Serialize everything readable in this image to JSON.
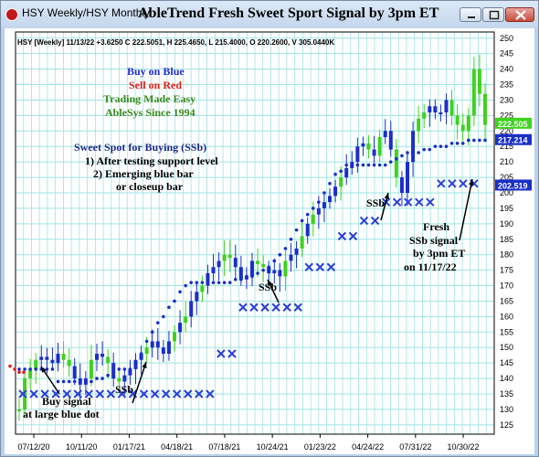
{
  "window": {
    "tab_label": "HSY Weekly/HSY Monthly",
    "chart_title": "AbleTrend Fresh Sweet Sport Signal by 3pm ET"
  },
  "info_line": "HSY [Weekly] 11/13/22 +3.6250 C 222.5051, H 225.4650, L 215.4000, O 220.2600, V 305.0440K",
  "legend": {
    "buy": "Buy on Blue",
    "sell": "Sell on Red",
    "easy": "Trading Made Easy",
    "since": "AbleSys Since 1994"
  },
  "sweet_spot": {
    "heading": "Sweet Spot for Buying (SSb)",
    "line1": "1) After testing support level",
    "line2": "2) Emerging blue bar",
    "line3": "or closeup bar"
  },
  "annotations": {
    "buy_signal_1": "Buy signal",
    "buy_signal_2": "at large blue dot",
    "ssb": "SSb",
    "fresh_1": "Fresh",
    "fresh_2": "SSb signal",
    "fresh_3": "by 3pm ET",
    "fresh_4": "on 11/17/22"
  },
  "chart_data": {
    "type": "candlestick",
    "x_tick_labels": [
      "07/12/20",
      "10/11/20",
      "01/17/21",
      "04/18/21",
      "07/18/21",
      "10/24/21",
      "01/23/22",
      "04/24/22",
      "07/31/22",
      "10/30/22"
    ],
    "y_ticks": [
      125,
      130,
      135,
      140,
      145,
      150,
      155,
      160,
      165,
      170,
      175,
      180,
      185,
      190,
      195,
      200,
      205,
      210,
      215,
      220,
      225,
      230,
      235,
      240,
      245,
      250
    ],
    "ylim": [
      122,
      252
    ],
    "price_labels": [
      {
        "value": 222.505,
        "label": "222.505",
        "color": "#3fd21f"
      },
      {
        "value": 217.214,
        "label": "217.214",
        "color": "#1a2ec8"
      },
      {
        "value": 202.519,
        "label": "202.519",
        "color": "#1a2ec8"
      }
    ],
    "colors": {
      "blue_bar": "#1a2ec8",
      "green_bar": "#3fd21f",
      "red": "#e0201a",
      "grid": "#9fe3e3"
    },
    "closes": [
      130,
      140,
      143,
      146,
      147,
      146,
      145,
      148,
      146,
      144,
      140,
      138,
      140,
      146,
      148,
      147,
      145,
      140,
      139,
      141,
      143,
      146,
      148,
      150,
      152,
      150,
      148,
      152,
      155,
      158,
      160,
      165,
      168,
      170,
      174,
      176,
      178,
      180,
      179,
      176,
      172,
      173,
      178,
      177,
      176,
      174,
      175,
      173,
      178,
      180,
      182,
      186,
      190,
      193,
      195,
      197,
      199,
      202,
      205,
      208,
      210,
      215,
      216,
      214,
      212,
      218,
      220,
      214,
      205,
      200,
      210,
      220,
      224,
      226,
      228,
      226,
      226,
      230,
      225,
      222,
      220,
      225,
      240,
      232,
      222
    ],
    "support_dots": [
      143,
      143,
      143,
      143,
      143,
      143,
      143,
      139,
      139,
      139,
      139,
      139,
      139,
      139,
      140,
      140,
      141,
      142,
      143,
      143,
      143,
      144,
      148,
      152,
      155,
      158,
      160,
      163,
      165,
      168,
      170,
      171,
      171,
      171,
      171,
      171,
      171,
      171,
      171,
      172,
      172,
      173,
      173,
      174,
      175,
      176,
      178,
      180,
      182,
      185,
      188,
      191,
      193,
      195,
      197,
      200,
      203,
      206,
      207,
      209,
      209,
      209,
      209,
      209,
      209,
      209,
      209,
      210,
      211,
      212,
      213,
      213,
      213,
      214,
      214,
      215,
      215,
      215,
      216,
      216,
      216,
      217,
      217,
      217,
      217
    ],
    "x_markers": [
      135,
      135,
      135,
      135,
      135,
      135,
      135,
      135,
      135,
      135,
      135,
      135,
      135,
      135,
      135,
      135,
      135,
      135,
      148,
      148,
      163,
      163,
      163,
      163,
      163,
      163,
      176,
      176,
      176,
      186,
      186,
      191,
      191,
      197,
      197,
      197,
      197,
      197,
      203,
      203,
      203,
      203
    ],
    "red_dots": [
      144,
      143,
      142,
      142
    ],
    "annotation_labels": [
      "Buy signal at large blue dot",
      "SSb",
      "SSb",
      "SSb",
      "Fresh SSb signal by 3pm ET on 11/17/22"
    ]
  }
}
